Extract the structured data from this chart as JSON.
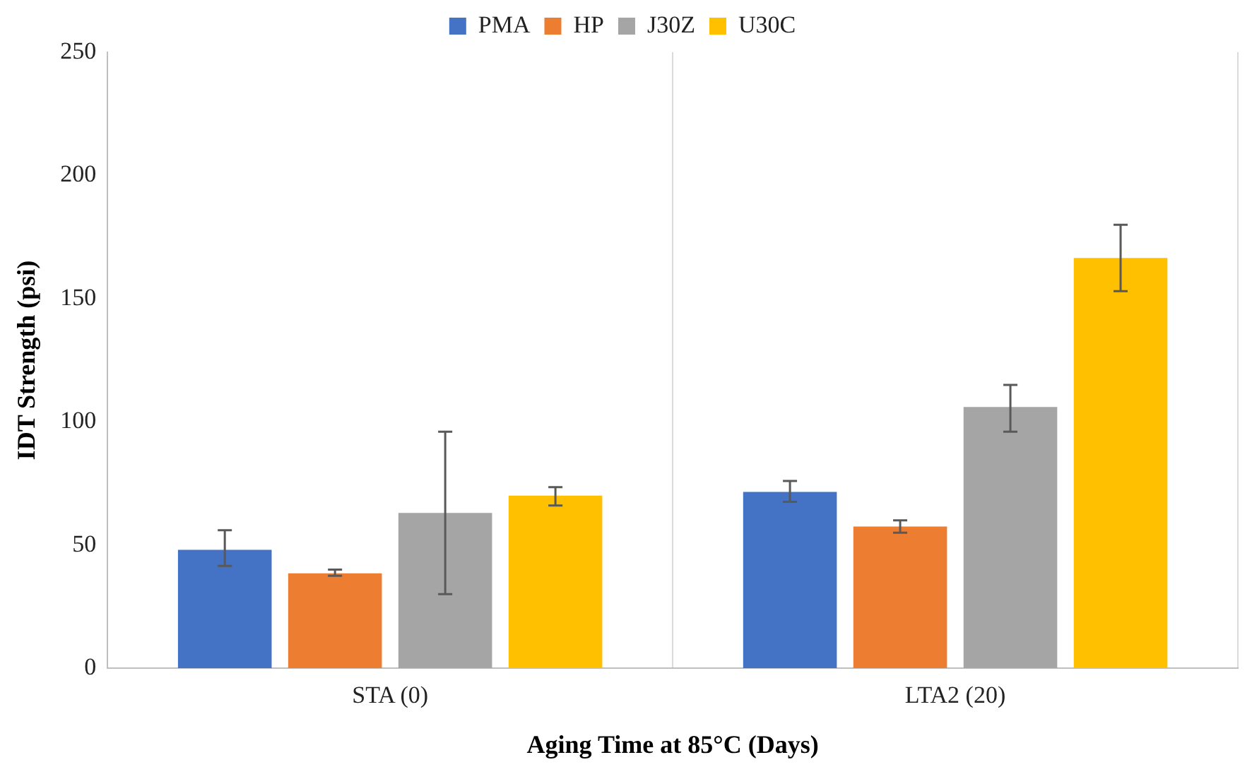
{
  "chart_data": {
    "type": "bar",
    "xlabel": "Aging Time at 85°C (Days)",
    "ylabel": "IDT Strength (psi)",
    "categories": [
      "STA (0)",
      "LTA2 (20)"
    ],
    "series": [
      {
        "name": "PMA",
        "color": "#4472c4",
        "values": [
          48,
          71.5
        ],
        "errors": [
          [
            41.5,
            56
          ],
          [
            67.5,
            76
          ]
        ]
      },
      {
        "name": "HP",
        "color": "#ed7d31",
        "values": [
          38.5,
          57.5
        ],
        "errors": [
          [
            37.5,
            40
          ],
          [
            55,
            60
          ]
        ]
      },
      {
        "name": "J30Z",
        "color": "#a5a5a5",
        "values": [
          63,
          106
        ],
        "errors": [
          [
            30,
            96
          ],
          [
            96,
            115
          ]
        ]
      },
      {
        "name": "U30C",
        "color": "#ffc000",
        "values": [
          70,
          166.5
        ],
        "errors": [
          [
            66,
            73.5
          ],
          [
            153,
            180
          ]
        ]
      }
    ],
    "ylim": [
      0,
      250
    ],
    "yticks": [
      0,
      50,
      100,
      150,
      200,
      250
    ],
    "grid": "x",
    "legend": "top"
  }
}
